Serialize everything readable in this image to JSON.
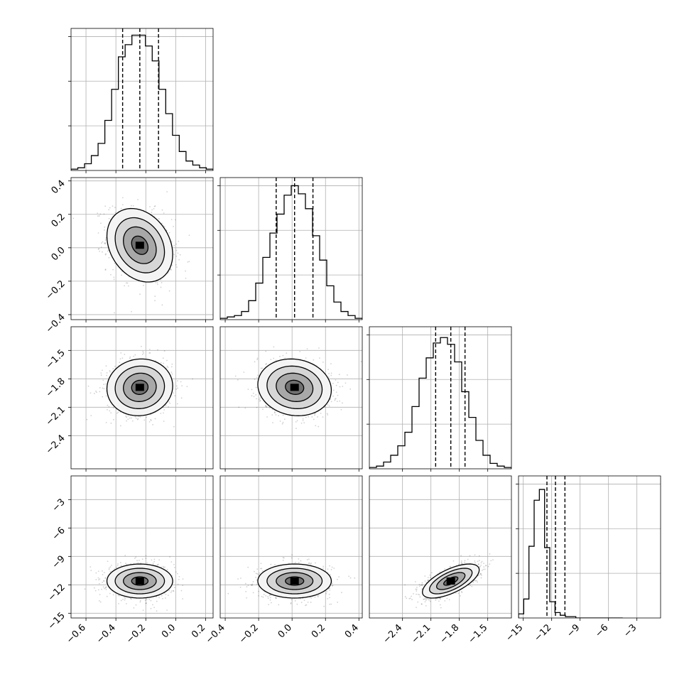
{
  "chart_data": {
    "type": "corner",
    "title": "",
    "grid": true,
    "colors": {
      "line": "#000000",
      "grid": "#b0b0b0",
      "scatter": "#000000"
    },
    "parameters": [
      {
        "index": 0,
        "range": [
          -0.7,
          0.25
        ],
        "ticks": [
          "-0.6",
          "-0.4",
          "-0.2",
          "0.0",
          "0.2"
        ],
        "tick_values": [
          -0.6,
          -0.4,
          -0.2,
          0.0,
          0.2
        ],
        "quantiles": [
          -0.355,
          -0.24,
          -0.115
        ],
        "hist_rel": [
          0.01,
          0.02,
          0.05,
          0.11,
          0.2,
          0.37,
          0.6,
          0.84,
          0.93,
          1.0,
          1.0,
          0.92,
          0.81,
          0.6,
          0.42,
          0.26,
          0.14,
          0.07,
          0.04,
          0.02,
          0.01
        ],
        "mean": -0.24,
        "sd": 0.11
      },
      {
        "index": 1,
        "range": [
          -0.43,
          0.42
        ],
        "ticks": [
          "-0.4",
          "-0.2",
          "0.0",
          "0.2",
          "0.4"
        ],
        "tick_values": [
          -0.4,
          -0.2,
          0.0,
          0.2,
          0.4
        ],
        "quantiles": [
          -0.095,
          0.015,
          0.125
        ],
        "hist_rel": [
          0.01,
          0.02,
          0.03,
          0.06,
          0.14,
          0.27,
          0.46,
          0.64,
          0.78,
          0.92,
          0.99,
          0.93,
          0.82,
          0.62,
          0.44,
          0.25,
          0.13,
          0.06,
          0.03,
          0.01
        ],
        "mean": 0.015,
        "sd": 0.11
      },
      {
        "index": 2,
        "range": [
          -2.75,
          -1.25
        ],
        "ticks": [
          "-2.4",
          "-2.1",
          "-1.8",
          "-1.5"
        ],
        "tick_values": [
          -2.4,
          -2.1,
          -1.8,
          -1.5
        ],
        "quantiles": [
          -2.05,
          -1.89,
          -1.74
        ],
        "hist_rel": [
          0.01,
          0.02,
          0.05,
          0.1,
          0.17,
          0.27,
          0.46,
          0.67,
          0.82,
          0.93,
          0.97,
          0.92,
          0.79,
          0.57,
          0.38,
          0.21,
          0.1,
          0.04,
          0.02,
          0.01
        ],
        "mean": -1.89,
        "sd": 0.15
      },
      {
        "index": 3,
        "range": [
          -15.5,
          -0.5
        ],
        "ticks": [
          "-15",
          "-12",
          "-9",
          "-6",
          "-3"
        ],
        "tick_values": [
          -15,
          -12,
          -9,
          -6,
          -3
        ],
        "quantiles": [
          -12.5,
          -11.6,
          -10.6
        ],
        "hist_rel": [
          0.03,
          0.14,
          0.53,
          0.87,
          0.95,
          0.52,
          0.12,
          0.04,
          0.02,
          0.01,
          0.01,
          0.0,
          0.0,
          0.0,
          0.0,
          0.0,
          0.0,
          0.0,
          0.0,
          0.0
        ],
        "hist_range": [
          -15.5,
          -4.5
        ],
        "mean": -11.6,
        "sd": 0.9
      }
    ],
    "correlations": {
      "1-0": -0.25,
      "2-0": 0.05,
      "2-1": -0.1,
      "3-0": 0.0,
      "3-1": 0.0,
      "3-2": 0.65
    },
    "contour_levels_sigma": [
      0.5,
      1.0,
      1.5,
      2.0
    ]
  }
}
